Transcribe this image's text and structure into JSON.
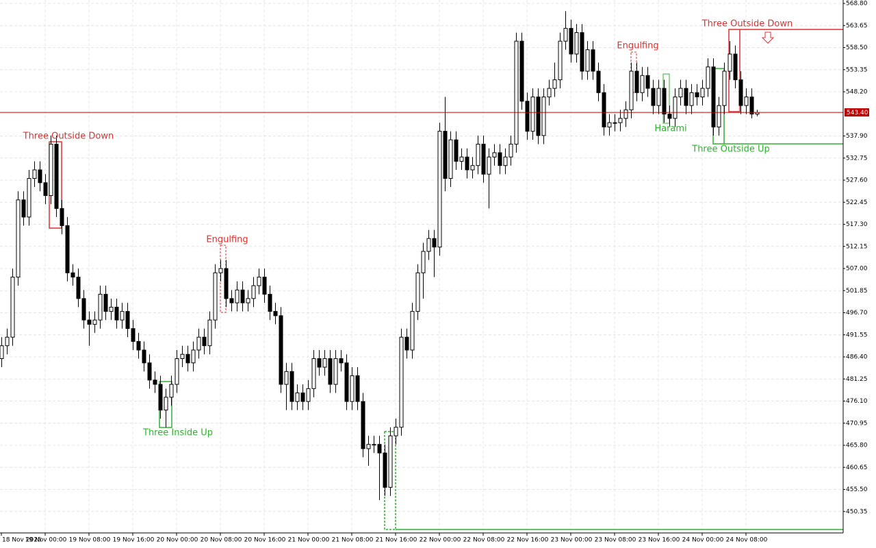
{
  "chart_data": {
    "type": "candlestick",
    "xlim": [
      -0.25,
      153.75
    ],
    "xticks": [
      {
        "value": 0,
        "label": "18 Nov 2025"
      },
      {
        "value": 8,
        "label": "19 Nov 00:00"
      },
      {
        "value": 16,
        "label": "19 Nov 08:00"
      },
      {
        "value": 24,
        "label": "19 Nov 16:00"
      },
      {
        "value": 32,
        "label": "20 Nov 00:00"
      },
      {
        "value": 40,
        "label": "20 Nov 08:00"
      },
      {
        "value": 48,
        "label": "20 Nov 16:00"
      },
      {
        "value": 56,
        "label": "21 Nov 00:00"
      },
      {
        "value": 64,
        "label": "21 Nov 08:00"
      },
      {
        "value": 72,
        "label": "21 Nov 16:00"
      },
      {
        "value": 80,
        "label": "22 Nov 00:00"
      },
      {
        "value": 88,
        "label": "22 Nov 08:00"
      },
      {
        "value": 96,
        "label": "22 Nov 16:00"
      },
      {
        "value": 104,
        "label": "23 Nov 00:00"
      },
      {
        "value": 112,
        "label": "23 Nov 08:00"
      },
      {
        "value": 120,
        "label": "23 Nov 16:00"
      },
      {
        "value": 128,
        "label": "24 Nov 00:00"
      },
      {
        "value": 136,
        "label": "24 Nov 08:00"
      }
    ],
    "ylim": [
      445.36,
      569.6
    ],
    "yticks": [
      {
        "value": 568.8,
        "label": "568.80"
      },
      563.65,
      {
        "value": 558.5,
        "label": "558.50"
      },
      553.35,
      {
        "value": 548.2,
        "label": "548.20"
      },
      {
        "value": 537.9,
        "label": "537.90"
      },
      532.75,
      {
        "value": 527.6,
        "label": "527.60"
      },
      522.45,
      {
        "value": 517.3,
        "label": "517.30"
      },
      512.15,
      {
        "value": 507,
        "label": "507.00"
      },
      501.85,
      {
        "value": 496.7,
        "label": "496.70"
      },
      491.55,
      {
        "value": 486.4,
        "label": "486.40"
      },
      481.25,
      {
        "value": 476.1,
        "label": "476.10"
      },
      470.95,
      {
        "value": 465.8,
        "label": "465.80"
      },
      460.65,
      {
        "value": 455.5,
        "label": "455.50"
      },
      450.35
    ],
    "grid": true,
    "up_color": "#ffffff",
    "down_color": "#000000",
    "last_price": {
      "value": 543.4,
      "label": "543.40",
      "color": "#c00000"
    },
    "open": [
      486,
      489,
      491,
      505,
      523,
      519,
      528,
      530,
      527,
      524,
      536,
      521,
      517,
      506,
      505,
      500,
      495,
      494,
      495,
      501,
      497,
      498,
      495,
      497,
      493,
      490,
      488,
      485,
      481,
      480,
      474,
      477,
      480,
      486,
      487,
      485,
      488,
      491,
      489,
      495,
      506,
      507,
      500,
      499,
      502,
      499,
      500,
      503,
      505,
      501,
      497,
      496,
      480,
      483,
      476,
      478,
      476,
      479,
      486,
      484,
      486,
      480,
      486,
      485,
      476,
      482,
      476,
      465,
      466,
      466,
      464,
      456,
      468,
      470,
      491,
      488,
      497,
      506,
      511,
      514,
      512,
      539,
      528,
      537,
      532,
      533,
      530,
      531,
      536,
      529,
      533,
      534,
      531,
      533,
      536,
      560,
      546,
      539,
      547,
      538,
      547,
      549,
      551,
      560,
      563,
      557,
      562,
      553,
      558,
      553,
      548,
      540,
      541,
      541,
      542,
      544,
      553,
      548,
      552,
      549,
      545,
      549,
      543,
      542,
      547,
      549,
      545,
      548,
      547,
      549,
      554,
      540,
      545,
      553,
      557,
      551,
      545,
      547,
      543
    ],
    "high": [
      491,
      493,
      507,
      525,
      525,
      530,
      532,
      532,
      529,
      538,
      538,
      523,
      519,
      508,
      507,
      502,
      497,
      497,
      503,
      503,
      500,
      500,
      499,
      499,
      495,
      492,
      490,
      487,
      483,
      482,
      479,
      482,
      488,
      489,
      489,
      490,
      493,
      493,
      497,
      508,
      509,
      509,
      502,
      504,
      504,
      502,
      505,
      507,
      507,
      503,
      499,
      498,
      485,
      485,
      480,
      480,
      481,
      488,
      488,
      488,
      488,
      488,
      488,
      487,
      484,
      484,
      478,
      468,
      468,
      468,
      466,
      470,
      472,
      493,
      493,
      499,
      508,
      513,
      516,
      516,
      541,
      547,
      539,
      539,
      535,
      535,
      533,
      538,
      538,
      535,
      536,
      536,
      535,
      538,
      562,
      562,
      548,
      549,
      549,
      549,
      551,
      555,
      562,
      567,
      565,
      564,
      564,
      560,
      560,
      555,
      550,
      543,
      543,
      544,
      546,
      555,
      555,
      554,
      554,
      551,
      551,
      551,
      545,
      549,
      551,
      551,
      550,
      550,
      551,
      556,
      556,
      547,
      555,
      560,
      559,
      553,
      549,
      549,
      544
    ],
    "low": [
      484,
      487,
      489,
      503,
      517,
      517,
      526,
      525,
      522,
      522,
      519,
      515,
      504,
      503,
      498,
      493,
      489,
      492,
      493,
      495,
      495,
      493,
      493,
      491,
      488,
      486,
      483,
      479,
      478,
      472,
      470,
      475,
      478,
      484,
      483,
      483,
      486,
      487,
      487,
      493,
      504,
      498,
      497,
      497,
      497,
      497,
      498,
      501,
      499,
      495,
      494,
      478,
      474,
      474,
      474,
      474,
      474,
      477,
      482,
      482,
      478,
      478,
      483,
      474,
      474,
      474,
      463,
      461,
      464,
      453,
      454,
      454,
      466,
      468,
      486,
      486,
      495,
      500,
      509,
      505,
      510,
      525,
      526,
      530,
      530,
      528,
      528,
      529,
      527,
      521,
      531,
      529,
      529,
      531,
      534,
      544,
      537,
      537,
      536,
      536,
      545,
      547,
      549,
      558,
      555,
      555,
      551,
      551,
      551,
      546,
      538,
      538,
      539,
      539,
      540,
      542,
      546,
      546,
      547,
      543,
      543,
      541,
      540,
      540,
      545,
      543,
      543,
      545,
      545,
      547,
      538,
      538,
      543,
      551,
      549,
      543,
      543,
      542,
      542.5
    ],
    "close": [
      489,
      491,
      505,
      523,
      519,
      528,
      530,
      527,
      524,
      536,
      521,
      517,
      506,
      505,
      500,
      495,
      494,
      495,
      501,
      497,
      498,
      495,
      497,
      493,
      490,
      488,
      485,
      481,
      480,
      474,
      477,
      480,
      486,
      487,
      485,
      488,
      491,
      489,
      495,
      506,
      507,
      500,
      499,
      502,
      499,
      500,
      503,
      505,
      501,
      497,
      496,
      480,
      483,
      476,
      478,
      476,
      479,
      486,
      484,
      486,
      480,
      486,
      485,
      476,
      482,
      476,
      465,
      466,
      466,
      464,
      456,
      468,
      470,
      491,
      488,
      497,
      506,
      511,
      514,
      512,
      539,
      528,
      537,
      532,
      533,
      530,
      531,
      536,
      529,
      533,
      534,
      531,
      533,
      536,
      560,
      546,
      539,
      547,
      538,
      547,
      549,
      551,
      560,
      563,
      557,
      562,
      553,
      558,
      553,
      548,
      540,
      541,
      541,
      542,
      544,
      553,
      548,
      552,
      549,
      545,
      549,
      543,
      542,
      547,
      549,
      545,
      548,
      547,
      549,
      554,
      540,
      545,
      553,
      557,
      551,
      545,
      547,
      543,
      543.4
    ],
    "annotations": [
      {
        "text": "Three Outside Down",
        "color": "#e03030"
      },
      {
        "text": "Engulfing",
        "color": "#e03030"
      },
      {
        "text": "Three Inside Up",
        "color": "#30b030"
      },
      {
        "text": "Engulfing",
        "color": "#e03030"
      },
      {
        "text": "Harami",
        "color": "#30b030"
      },
      {
        "text": "Three Outside Down",
        "color": "#e03030"
      },
      {
        "text": "Three Outside Up",
        "color": "#30b030"
      }
    ]
  }
}
